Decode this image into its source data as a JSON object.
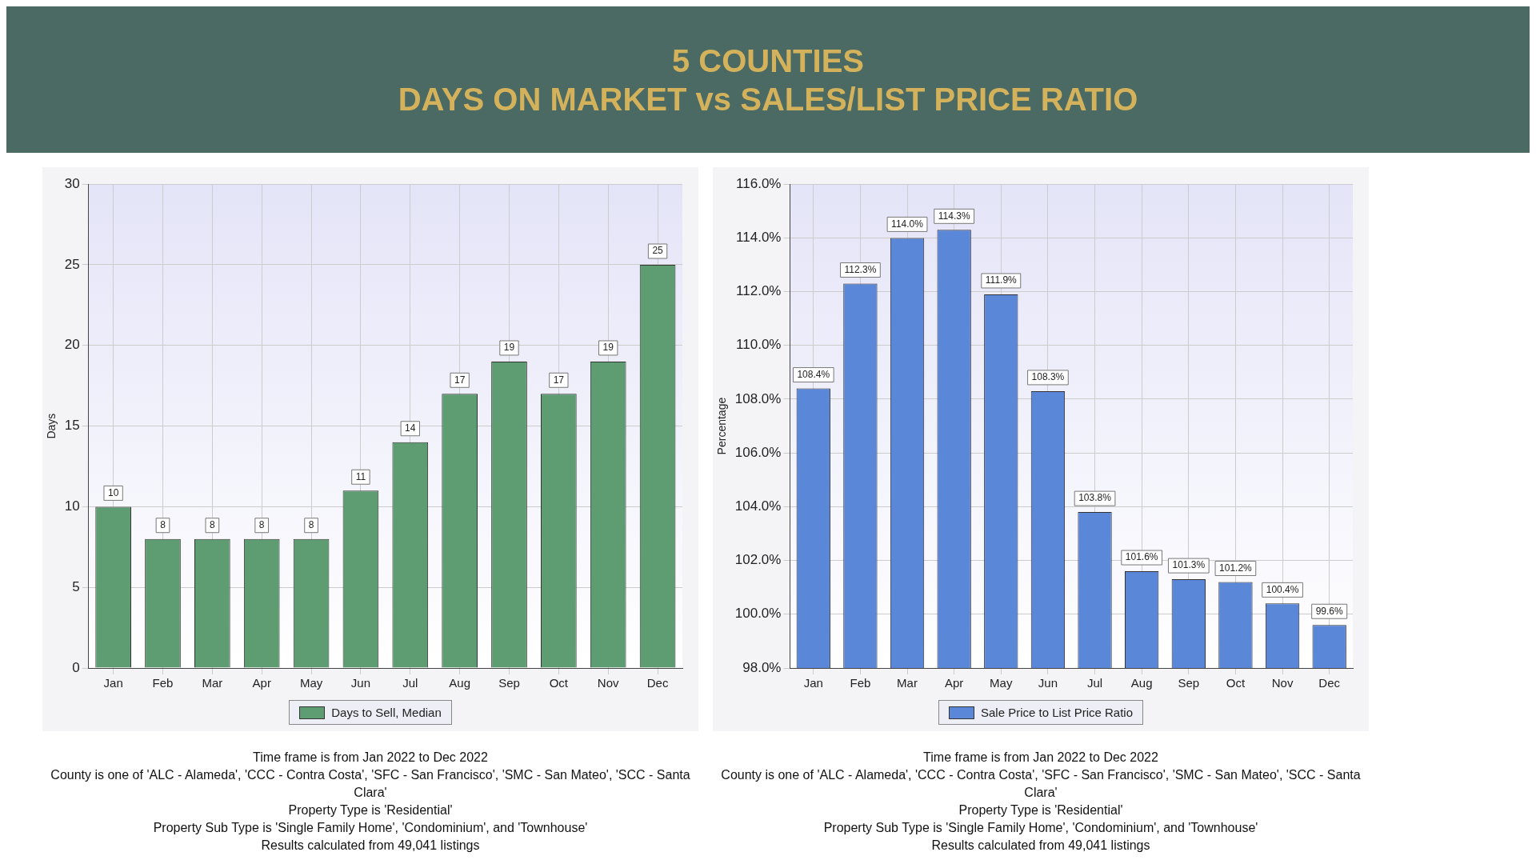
{
  "chart_data": [
    {
      "type": "bar",
      "title": "5 COUNTIES",
      "subtitle": "DAYS ON MARKET vs SALES/LIST PRICE RATIO",
      "ylabel": "Days",
      "categories": [
        "Jan",
        "Feb",
        "Mar",
        "Apr",
        "May",
        "Jun",
        "Jul",
        "Aug",
        "Sep",
        "Oct",
        "Nov",
        "Dec"
      ],
      "series": [
        {
          "name": "Days to Sell, Median",
          "color": "#5e9c72",
          "values": [
            10,
            8,
            8,
            8,
            8,
            11,
            14,
            17,
            19,
            17,
            19,
            25
          ]
        }
      ],
      "ylim": [
        0,
        30
      ],
      "yticks": [
        0,
        5,
        10,
        15,
        20,
        25,
        30
      ],
      "grid": true,
      "legend": "bottom",
      "data_labels": true,
      "annotations": [
        "Time frame is from Jan 2022 to Dec 2022",
        "County is one of 'ALC - Alameda', 'CCC - Contra Costa', 'SFC - San Francisco', 'SMC - San Mateo', 'SCC - Santa Clara'",
        "Property Type is 'Residential'",
        "Property Sub Type is 'Single Family Home', 'Condominium', and 'Townhouse'",
        "Results calculated from 49,041 listings"
      ]
    },
    {
      "type": "bar",
      "ylabel": "Percentage",
      "categories": [
        "Jan",
        "Feb",
        "Mar",
        "Apr",
        "May",
        "Jun",
        "Jul",
        "Aug",
        "Sep",
        "Oct",
        "Nov",
        "Dec"
      ],
      "series": [
        {
          "name": "Sale Price to List Price Ratio",
          "color": "#5b87d9",
          "values": [
            108.4,
            112.3,
            114.0,
            114.3,
            111.9,
            108.3,
            103.8,
            101.6,
            101.3,
            101.2,
            100.4,
            99.6
          ],
          "value_labels": [
            "108.4%",
            "112.3%",
            "114.0%",
            "114.3%",
            "111.9%",
            "108.3%",
            "103.8%",
            "101.6%",
            "101.3%",
            "101.2%",
            "100.4%",
            "99.6%"
          ]
        }
      ],
      "ylim": [
        98,
        116
      ],
      "yticks": [
        {
          "value": 98,
          "label": "98.0%"
        },
        {
          "value": 100,
          "label": "100.0%"
        },
        {
          "value": 102,
          "label": "102.0%"
        },
        {
          "value": 104,
          "label": "104.0%"
        },
        {
          "value": 106,
          "label": "106.0%"
        },
        {
          "value": 108,
          "label": "108.0%"
        },
        {
          "value": 110,
          "label": "110.0%"
        },
        {
          "value": 112,
          "label": "112.0%"
        },
        {
          "value": 114,
          "label": "114.0%"
        },
        {
          "value": 116,
          "label": "116.0%"
        }
      ],
      "grid": true,
      "legend": "bottom",
      "annotations": [
        "Time frame is from Jan 2022 to Dec 2022",
        "County is one of 'ALC - Alameda', 'CCC - Contra Costa', 'SFC - San Francisco', 'SMC - San Mateo', 'SCC - Santa Clara'",
        "Property Type is 'Residential'",
        "Property Sub Type is 'Single Family Home', 'Condominium', and 'Townhouse'",
        "Results calculated from 49,041 listings"
      ]
    }
  ]
}
